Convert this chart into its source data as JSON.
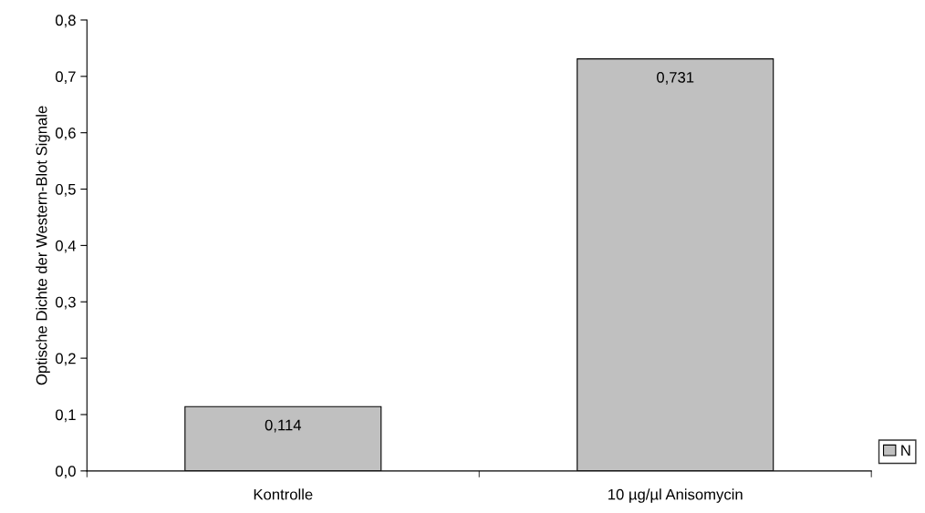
{
  "chart_data": {
    "type": "bar",
    "ylabel": "Optische Dichte der Western-Blot Signale",
    "categories": [
      "Kontrolle",
      "10 µg/µl Anisomycin"
    ],
    "series": [
      {
        "name": "N",
        "color": "#c0c0c0",
        "values": [
          0.114,
          0.731
        ],
        "value_labels": [
          "0,114",
          "0,731"
        ]
      }
    ],
    "ylim": [
      0,
      0.8
    ],
    "yticks": [
      {
        "value": 0,
        "label": "0,0"
      },
      {
        "value": 0.1,
        "label": "0,1"
      },
      {
        "value": 0.2,
        "label": "0,2"
      },
      {
        "value": 0.3,
        "label": "0,3"
      },
      {
        "value": 0.4,
        "label": "0,4"
      },
      {
        "value": 0.5,
        "label": "0,5"
      },
      {
        "value": 0.6,
        "label": "0,6"
      },
      {
        "value": 0.7,
        "label": "0,7"
      },
      {
        "value": 0.8,
        "label": "0,8"
      }
    ],
    "legend": "right",
    "grid": false
  }
}
